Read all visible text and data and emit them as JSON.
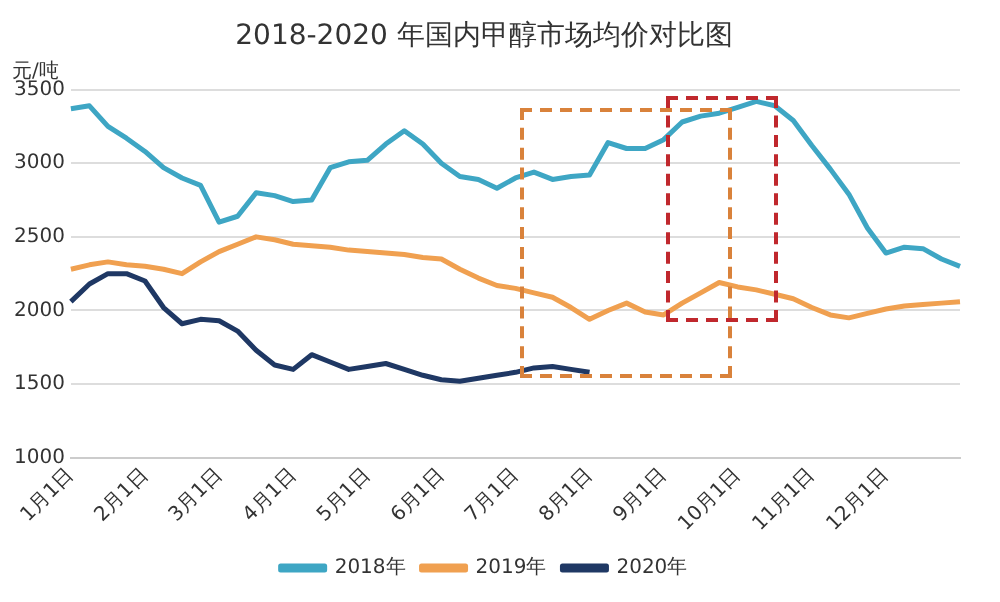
{
  "chart_data": {
    "type": "line",
    "title": "2018-2020 年国内甲醇市场均价对比图",
    "ylabel": "元/吨",
    "categories": [
      "1月1日",
      null,
      null,
      null,
      "2月1日",
      null,
      null,
      null,
      "3月1日",
      null,
      null,
      null,
      "4月1日",
      null,
      null,
      null,
      "5月1日",
      null,
      null,
      null,
      "6月1日",
      null,
      null,
      null,
      "7月1日",
      null,
      null,
      null,
      "8月1日",
      null,
      null,
      null,
      "9月1日",
      null,
      null,
      null,
      "10月1日",
      null,
      null,
      null,
      "11月1日",
      null,
      null,
      null,
      "12月1日",
      null,
      null,
      null,
      null
    ],
    "ylim": [
      1000,
      3500
    ],
    "yticks": [
      1000,
      1500,
      2000,
      2500,
      3000,
      3500
    ],
    "grid": "y",
    "legend": "bottom",
    "marker": "none",
    "line_style": "solid",
    "series": [
      {
        "name": "2018年",
        "color": "#3ea6c4",
        "values": [
          3370,
          3390,
          3250,
          3170,
          3080,
          2970,
          2900,
          2850,
          2600,
          2640,
          2800,
          2780,
          2740,
          2750,
          2970,
          3010,
          3020,
          3130,
          3220,
          3130,
          3000,
          2910,
          2890,
          2830,
          2900,
          2940,
          2890,
          2910,
          2920,
          3140,
          3100,
          3100,
          3160,
          3280,
          3320,
          3340,
          3380,
          3420,
          3390,
          3290,
          3120,
          2960,
          2790,
          2560,
          2390,
          2430,
          2420,
          2350,
          2300
        ]
      },
      {
        "name": "2019年",
        "color": "#f0a050",
        "values": [
          2280,
          2310,
          2330,
          2310,
          2300,
          2280,
          2250,
          2330,
          2400,
          2450,
          2500,
          2480,
          2450,
          2440,
          2430,
          2410,
          2400,
          2390,
          2380,
          2360,
          2350,
          2280,
          2220,
          2170,
          2150,
          2120,
          2090,
          2020,
          1940,
          2000,
          2050,
          1990,
          1970,
          2050,
          2120,
          2190,
          2160,
          2140,
          2110,
          2080,
          2020,
          1970,
          1950,
          1980,
          2010,
          2030,
          2040,
          2050,
          2060
        ]
      },
      {
        "name": "2020年",
        "color": "#1f3864",
        "values": [
          2060,
          2180,
          2250,
          2250,
          2200,
          2020,
          1910,
          1940,
          1930,
          1860,
          1730,
          1630,
          1600,
          1700,
          1650,
          1600,
          1620,
          1640,
          1600,
          1560,
          1530,
          1520,
          1540,
          1560,
          1580,
          1610,
          1620,
          1600,
          1580,
          null,
          null,
          null,
          null,
          null,
          null,
          null,
          null,
          null,
          null,
          null,
          null,
          null,
          null,
          null,
          null,
          null,
          null,
          null,
          null
        ]
      }
    ]
  }
}
